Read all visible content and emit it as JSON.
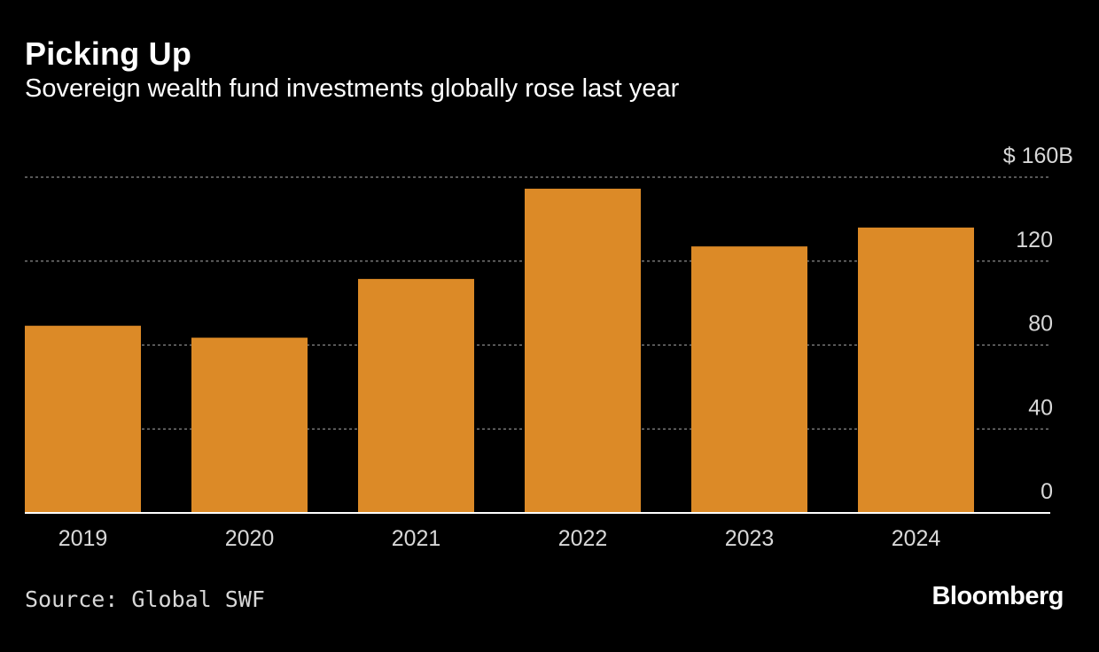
{
  "header": {
    "title": "Picking Up",
    "subtitle": "Sovereign wealth fund investments globally rose last year"
  },
  "chart_data": {
    "type": "bar",
    "title": "Picking Up",
    "subtitle": "Sovereign wealth fund investments globally rose last year",
    "categories": [
      "2019",
      "2020",
      "2021",
      "2022",
      "2023",
      "2024"
    ],
    "values": [
      89.2,
      83.5,
      111.5,
      154.5,
      127.0,
      136.0
    ],
    "ylim": [
      0,
      160
    ],
    "yticks": [
      0,
      40,
      80,
      120,
      160
    ],
    "ytick_labels": [
      "0",
      "40",
      "80",
      "120",
      "$ 160B"
    ],
    "xlabel": "",
    "ylabel": "",
    "unit": "$B",
    "grid": true,
    "bar_color": "#dc8a27",
    "gridline_color": "#8a8a8a",
    "axis_color": "#ffffff"
  },
  "footer": {
    "source": "Source: Global SWF",
    "brand": "Bloomberg"
  }
}
